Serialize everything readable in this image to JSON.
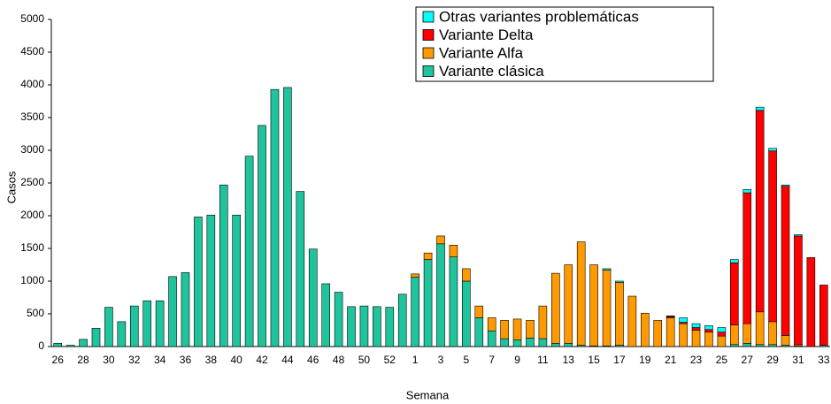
{
  "chart_data": {
    "type": "stacked_bar",
    "x_label": "Semana",
    "y_label": "Casos",
    "categories": [
      "26",
      null,
      "28",
      null,
      "30",
      null,
      "32",
      null,
      "34",
      null,
      "36",
      null,
      "38",
      null,
      "40",
      null,
      "42",
      null,
      "44",
      null,
      "46",
      null,
      "48",
      null,
      "50",
      null,
      "52",
      null,
      "1",
      null,
      "3",
      null,
      "5",
      null,
      "7",
      null,
      "9",
      null,
      "11",
      null,
      "13",
      null,
      "15",
      null,
      "17",
      null,
      "19",
      null,
      "21",
      null,
      "23",
      null,
      "25",
      null,
      "27",
      null,
      "29",
      null,
      "31",
      null,
      "33"
    ],
    "series": [
      {
        "name": "Variante clásica",
        "color": "#1fc49c",
        "values": [
          50,
          20,
          110,
          280,
          600,
          380,
          620,
          700,
          700,
          1070,
          1130,
          1980,
          2010,
          2470,
          2010,
          2910,
          3380,
          3930,
          3960,
          2370,
          1490,
          960,
          830,
          610,
          620,
          610,
          600,
          800,
          1060,
          1330,
          1570,
          1370,
          1000,
          440,
          240,
          120,
          100,
          130,
          120,
          50,
          50,
          20,
          10,
          10,
          20,
          0,
          0,
          0,
          0,
          0,
          0,
          0,
          0,
          30,
          50,
          30,
          30,
          20,
          10,
          0,
          20
        ]
      },
      {
        "name": "Variante Alfa",
        "color": "#ff9900",
        "values": [
          0,
          0,
          0,
          0,
          0,
          0,
          0,
          0,
          0,
          0,
          0,
          0,
          0,
          0,
          0,
          0,
          0,
          0,
          0,
          0,
          0,
          0,
          0,
          0,
          0,
          0,
          0,
          0,
          50,
          100,
          120,
          180,
          190,
          180,
          200,
          280,
          320,
          270,
          500,
          1070,
          1200,
          1580,
          1240,
          1160,
          960,
          770,
          510,
          400,
          440,
          350,
          250,
          220,
          160,
          300,
          300,
          500,
          350,
          150,
          20,
          0,
          0
        ]
      },
      {
        "name": "Variante Delta",
        "color": "#ff0000",
        "values": [
          0,
          0,
          0,
          0,
          0,
          0,
          0,
          0,
          0,
          0,
          0,
          0,
          0,
          0,
          0,
          0,
          0,
          0,
          0,
          0,
          0,
          0,
          0,
          0,
          0,
          0,
          0,
          0,
          0,
          0,
          0,
          0,
          0,
          0,
          0,
          0,
          0,
          0,
          0,
          0,
          0,
          0,
          0,
          0,
          0,
          0,
          0,
          0,
          20,
          20,
          40,
          40,
          60,
          950,
          2000,
          3080,
          2610,
          2280,
          1660,
          1360,
          920
        ]
      },
      {
        "name": "Otras variantes problemáticas",
        "color": "#00ffff",
        "values": [
          0,
          0,
          0,
          0,
          0,
          0,
          0,
          0,
          0,
          0,
          0,
          0,
          0,
          0,
          0,
          0,
          0,
          0,
          0,
          0,
          0,
          0,
          0,
          0,
          0,
          0,
          0,
          0,
          0,
          0,
          0,
          0,
          0,
          0,
          0,
          0,
          0,
          0,
          0,
          0,
          0,
          0,
          0,
          20,
          20,
          0,
          0,
          0,
          10,
          70,
          60,
          60,
          70,
          50,
          50,
          50,
          40,
          20,
          20,
          0,
          0
        ]
      }
    ],
    "ylim": [
      0,
      5000
    ],
    "yticks": [
      0,
      500,
      1000,
      1500,
      2000,
      2500,
      3000,
      3500,
      4000,
      4500,
      5000
    ],
    "grid": false
  }
}
